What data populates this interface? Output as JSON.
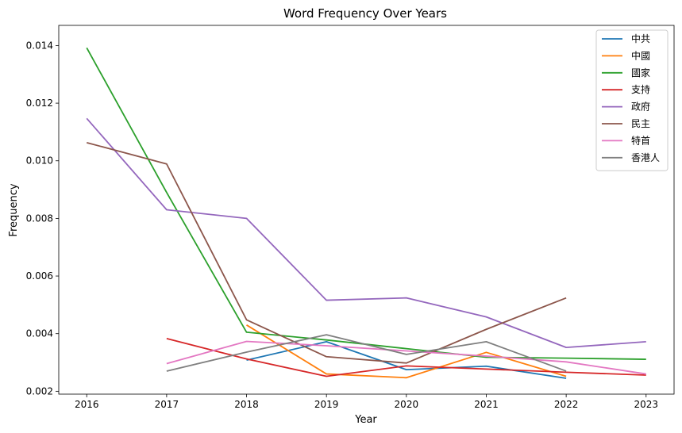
{
  "chart_data": {
    "type": "line",
    "title": "Word Frequency Over Years",
    "xlabel": "Year",
    "ylabel": "Frequency",
    "x": [
      2016,
      2017,
      2018,
      2019,
      2020,
      2021,
      2022,
      2023
    ],
    "ylim": [
      0.0019,
      0.0147
    ],
    "yticks": [
      0.002,
      0.004,
      0.006,
      0.008,
      0.01,
      0.012,
      0.014
    ],
    "ytick_labels": [
      "0.002",
      "0.004",
      "0.006",
      "0.008",
      "0.010",
      "0.012",
      "0.014"
    ],
    "grid": false,
    "legend_position": "top-right",
    "series": [
      {
        "name": "中共",
        "color": "#1f77b4",
        "values": [
          null,
          null,
          0.00308,
          0.00372,
          0.00275,
          0.00287,
          0.00245,
          null
        ]
      },
      {
        "name": "中國",
        "color": "#ff7f0e",
        "values": [
          null,
          null,
          0.0043,
          0.0026,
          0.00247,
          0.00335,
          0.00252,
          null
        ]
      },
      {
        "name": "國家",
        "color": "#2ca02c",
        "values": [
          0.01392,
          0.0089,
          0.00405,
          0.00378,
          0.00348,
          0.00318,
          0.00315,
          0.00311
        ]
      },
      {
        "name": "支持",
        "color": "#d62728",
        "values": [
          null,
          0.00383,
          0.00312,
          0.00252,
          0.00288,
          0.00277,
          0.00266,
          0.00256
        ]
      },
      {
        "name": "政府",
        "color": "#9467bd",
        "values": [
          0.01147,
          0.0083,
          0.008,
          0.00516,
          0.00524,
          0.00458,
          0.00352,
          0.00372
        ]
      },
      {
        "name": "民主",
        "color": "#8c564b",
        "values": [
          0.01063,
          0.00989,
          0.00448,
          0.0032,
          0.00298,
          0.00415,
          0.00524,
          null
        ]
      },
      {
        "name": "特首",
        "color": "#e377c2",
        "values": [
          null,
          0.00296,
          0.00373,
          0.00358,
          0.0034,
          0.00322,
          0.00302,
          0.0026
        ]
      },
      {
        "name": "香港人",
        "color": "#7f7f7f",
        "values": [
          null,
          0.0027,
          0.00336,
          0.00396,
          0.00328,
          0.00372,
          0.0027,
          null
        ]
      }
    ]
  }
}
